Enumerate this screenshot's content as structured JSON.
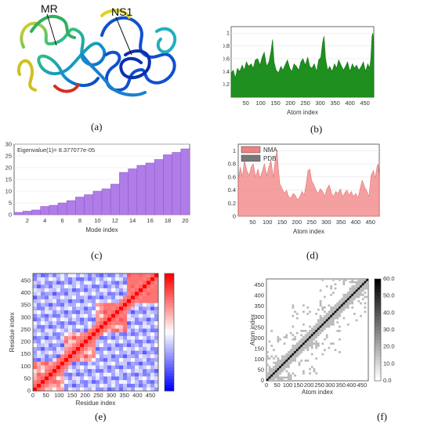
{
  "panels": {
    "a": {
      "caption": "(a)",
      "labels": [
        "MR",
        "NS1"
      ]
    },
    "b": {
      "caption": "(b)",
      "chart_data": {
        "type": "area",
        "xlabel": "Atom index",
        "ylabel": "",
        "xlim": [
          1,
          480
        ],
        "ylim": [
          0,
          1.1
        ],
        "xticks": [
          50,
          100,
          150,
          200,
          250,
          300,
          350,
          400,
          450
        ],
        "yticks": [
          0.2,
          0.4,
          0.6,
          0.8,
          1
        ],
        "color": "#1f8f1f",
        "series": [
          {
            "x": [
              1,
              8,
              15,
              22,
              30,
              38,
              45,
              52,
              60,
              68,
              75,
              82,
              90,
              98,
              105,
              112,
              120,
              128,
              135,
              140,
              145,
              152,
              160,
              168,
              175,
              182,
              190,
              198,
              205,
              212,
              220,
              228,
              235,
              242,
              250,
              258,
              265,
              272,
              280,
              288,
              295,
              302,
              308,
              313,
              318,
              325,
              332,
              340,
              348,
              355,
              362,
              370,
              378,
              385,
              392,
              400,
              408,
              415,
              422,
              430,
              438,
              445,
              452,
              460,
              466,
              470,
              474,
              477,
              480
            ],
            "y": [
              0.38,
              0.42,
              0.3,
              0.45,
              0.4,
              0.5,
              0.42,
              0.55,
              0.48,
              0.52,
              0.45,
              0.58,
              0.6,
              0.5,
              0.62,
              0.7,
              0.48,
              0.55,
              0.72,
              0.9,
              0.55,
              0.42,
              0.38,
              0.48,
              0.42,
              0.5,
              0.58,
              0.45,
              0.4,
              0.52,
              0.48,
              0.42,
              0.55,
              0.6,
              0.5,
              0.62,
              0.48,
              0.45,
              0.52,
              0.4,
              0.58,
              0.62,
              0.85,
              0.95,
              0.6,
              0.42,
              0.48,
              0.4,
              0.52,
              0.45,
              0.58,
              0.5,
              0.42,
              0.48,
              0.55,
              0.4,
              0.52,
              0.45,
              0.5,
              0.42,
              0.48,
              0.55,
              0.4,
              0.52,
              0.45,
              0.6,
              0.95,
              1.0,
              0.75
            ]
          }
        ]
      }
    },
    "c": {
      "caption": "(c)",
      "chart_data": {
        "type": "bar",
        "annotation": "Eigenvalue(1)= 8.377077e-05",
        "xlabel": "Mode index",
        "ylabel": "",
        "categories": [
          1,
          2,
          3,
          4,
          5,
          6,
          7,
          8,
          9,
          10,
          11,
          12,
          13,
          14,
          15,
          16,
          17,
          18,
          19,
          20
        ],
        "values": [
          1,
          1.5,
          2,
          3.5,
          4,
          5,
          6,
          7.5,
          8.5,
          10,
          11,
          13,
          18,
          19.5,
          21,
          22,
          23.5,
          25.5,
          26.5,
          28
        ],
        "ylim": [
          0,
          30
        ],
        "xticks": [
          2,
          4,
          6,
          8,
          10,
          12,
          14,
          16,
          18,
          20
        ],
        "yticks": [
          0,
          5,
          10,
          15,
          20,
          25,
          30
        ],
        "color": "#b07ce8"
      }
    },
    "d": {
      "caption": "(d)",
      "chart_data": {
        "type": "area",
        "xlabel": "Atom index",
        "ylabel": "",
        "xlim": [
          1,
          480
        ],
        "ylim": [
          0,
          1.1
        ],
        "xticks": [
          50,
          100,
          150,
          200,
          250,
          300,
          350,
          400,
          450
        ],
        "yticks": [
          0,
          0.2,
          0.4,
          0.6,
          0.8,
          1
        ],
        "legend": "top-left",
        "series": [
          {
            "name": "NMA",
            "color": "#f08080",
            "x": [
              1,
              8,
              15,
              22,
              30,
              38,
              45,
              52,
              60,
              68,
              75,
              82,
              90,
              98,
              105,
              112,
              120,
              128,
              133,
              137,
              142,
              150,
              158,
              165,
              172,
              180,
              188,
              195,
              202,
              210,
              218,
              225,
              232,
              238,
              244,
              250,
              258,
              265,
              272,
              280,
              288,
              295,
              302,
              310,
              318,
              325,
              332,
              340,
              348,
              355,
              362,
              370,
              378,
              385,
              392,
              400,
              408,
              415,
              422,
              430,
              438,
              445,
              452,
              460,
              466,
              472,
              476,
              480
            ],
            "y": [
              0.55,
              0.75,
              0.6,
              0.85,
              0.7,
              0.62,
              0.75,
              0.8,
              0.6,
              0.72,
              0.58,
              0.68,
              0.8,
              0.62,
              0.75,
              0.85,
              0.6,
              0.9,
              1.0,
              0.75,
              0.5,
              0.42,
              0.35,
              0.4,
              0.3,
              0.28,
              0.35,
              0.32,
              0.25,
              0.3,
              0.38,
              0.32,
              0.5,
              0.7,
              0.72,
              0.55,
              0.48,
              0.4,
              0.35,
              0.42,
              0.38,
              0.3,
              0.42,
              0.48,
              0.35,
              0.3,
              0.38,
              0.35,
              0.42,
              0.3,
              0.35,
              0.4,
              0.32,
              0.38,
              0.3,
              0.35,
              0.28,
              0.42,
              0.55,
              0.45,
              0.38,
              0.3,
              0.62,
              0.7,
              0.58,
              0.75,
              0.8,
              0.6
            ]
          },
          {
            "name": "PDB",
            "color": "#777777",
            "x": [],
            "y": []
          }
        ]
      }
    },
    "e": {
      "caption": "(e)",
      "chart_data": {
        "type": "heatmap",
        "xlabel": "Residue index",
        "ylabel": "Residue index",
        "xlim": [
          0,
          480
        ],
        "ylim": [
          0,
          480
        ],
        "xticks": [
          0,
          50,
          100,
          150,
          200,
          250,
          300,
          350,
          400,
          450
        ],
        "yticks": [
          0,
          50,
          100,
          150,
          200,
          250,
          300,
          350,
          400,
          450
        ],
        "colormap": [
          "#1010e0",
          "#ffffff",
          "#e01010"
        ]
      }
    },
    "f": {
      "caption": "(f)",
      "chart_data": {
        "type": "heatmap",
        "xlabel": "Atom index",
        "ylabel": "Atom index",
        "xlim": [
          0,
          480
        ],
        "ylim": [
          0,
          480
        ],
        "xticks": [
          0,
          50,
          100,
          150,
          200,
          250,
          300,
          350,
          400,
          450
        ],
        "yticks": [
          0,
          50,
          100,
          150,
          200,
          250,
          300,
          350,
          400,
          450
        ],
        "colorbar_ticks": [
          "0.0",
          "10.0",
          "20.0",
          "30.0",
          "40.0",
          "50.0",
          "60.0"
        ]
      }
    }
  }
}
